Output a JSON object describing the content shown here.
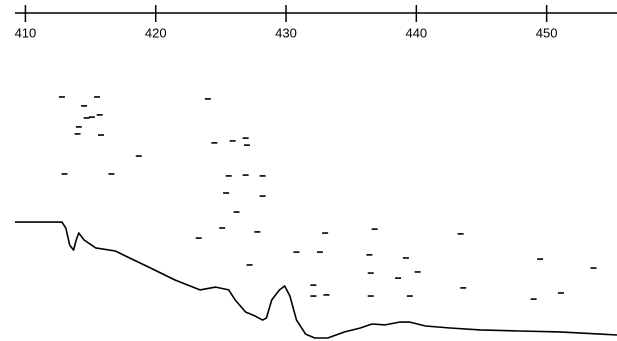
{
  "chart_data": {
    "type": "scatter",
    "xlim": [
      409.2,
      455.4
    ],
    "xticks": [
      410,
      420,
      430,
      440,
      450
    ],
    "ylim": [
      0,
      100
    ],
    "series": [
      {
        "type": "scatter",
        "color": "#000000",
        "x": [
          412.8,
          415.5,
          414.5,
          415.1,
          415.7,
          414.7,
          414.1,
          414.0,
          415.8,
          418.7,
          424.0,
          424.5,
          425.9,
          426.9,
          427.0,
          413.0,
          416.6,
          425.6,
          426.9,
          428.2,
          425.4,
          428.2,
          426.2,
          425.1,
          427.8,
          423.3,
          427.2,
          430.8,
          432.6,
          433.0,
          436.8,
          443.4,
          436.4,
          439.2,
          449.5,
          453.6,
          436.5,
          438.6,
          440.1,
          432.1,
          443.6,
          432.1,
          433.1,
          436.5,
          439.5,
          451.1,
          449.0
        ],
        "values": [
          86.8,
          86.8,
          83.6,
          79.6,
          80.4,
          79.3,
          76.1,
          73.6,
          73.2,
          65.7,
          86.1,
          70.4,
          71.1,
          72.1,
          69.6,
          59.3,
          59.3,
          58.6,
          58.9,
          58.6,
          52.5,
          51.4,
          45.7,
          40.0,
          38.6,
          36.4,
          26.8,
          31.4,
          31.4,
          38.2,
          39.6,
          37.9,
          30.4,
          29.3,
          28.9,
          25.7,
          23.9,
          22.1,
          24.3,
          19.6,
          18.6,
          15.7,
          16.1,
          15.7,
          15.7,
          16.8,
          14.6
        ]
      },
      {
        "type": "line",
        "color": "#000000",
        "x": [
          409.2,
          412.8,
          413.1,
          413.4,
          413.7,
          413.9,
          414.1,
          414.5,
          415.4,
          416.9,
          418.0,
          419.6,
          421.5,
          423.4,
          424.6,
          425.6,
          426.1,
          426.9,
          427.6,
          428.2,
          428.5,
          428.9,
          429.5,
          429.9,
          430.3,
          430.8,
          431.5,
          432.2,
          433.2,
          434.5,
          435.7,
          436.6,
          437.6,
          438.7,
          439.5,
          440.7,
          442.6,
          444.9,
          447.9,
          451.0,
          454.1,
          455.4
        ],
        "values": [
          42.1,
          42.1,
          40,
          33.9,
          32.1,
          35.7,
          38.2,
          35.7,
          32.9,
          31.8,
          29.3,
          25.7,
          21.4,
          17.9,
          18.9,
          17.9,
          14.3,
          10,
          8.6,
          7.1,
          7.9,
          14.3,
          17.9,
          19.3,
          15.7,
          7.1,
          2.1,
          0.7,
          0.7,
          2.9,
          4.3,
          5.7,
          5.4,
          6.4,
          6.4,
          5,
          4.3,
          3.6,
          3.2,
          2.9,
          2.1,
          1.8
        ]
      }
    ]
  }
}
